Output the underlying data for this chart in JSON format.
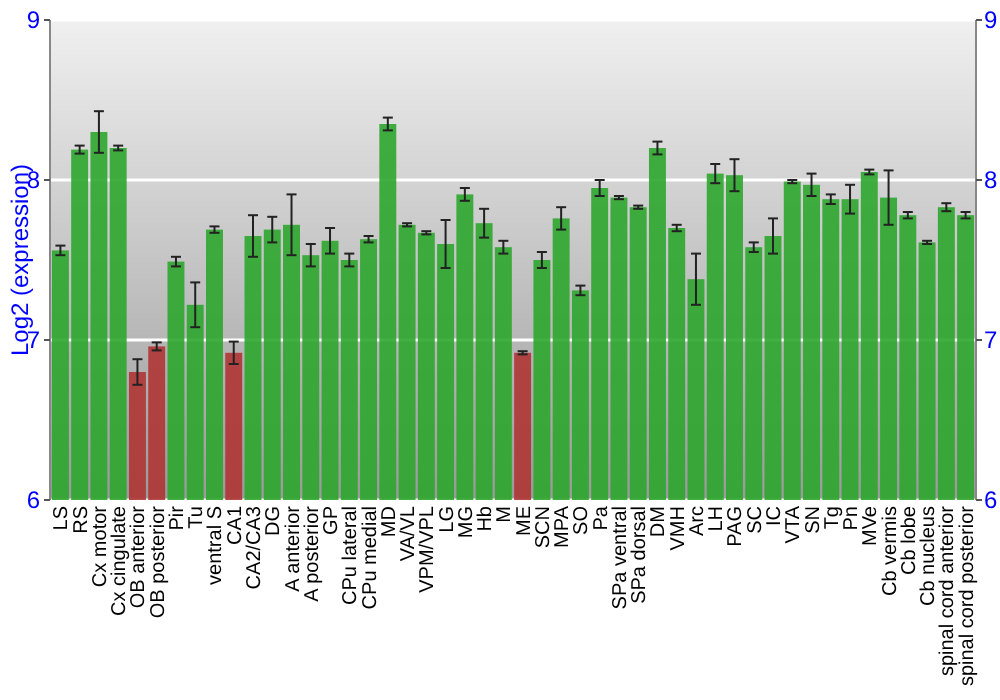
{
  "chart_data": {
    "type": "bar",
    "ylabel": "Log2 (expression)",
    "categories": [
      "LS",
      "RS",
      "Cx motor",
      "Cx cingulate",
      "OB anterior",
      "OB posterior",
      "Pir",
      "Tu",
      "ventral S",
      "CA1",
      "CA2/CA3",
      "DG",
      "A anterior",
      "A posterior",
      "GP",
      "CPu lateral",
      "CPu medial",
      "MD",
      "VA/VL",
      "VPM/VPL",
      "LG",
      "MG",
      "Hb",
      "M",
      "ME",
      "SCN",
      "MPA",
      "SO",
      "Pa",
      "SPa ventral",
      "SPa dorsal",
      "DM",
      "VMH",
      "Arc",
      "LH",
      "PAG",
      "SC",
      "IC",
      "VTA",
      "SN",
      "Tg",
      "Pn",
      "MVe",
      "Cb vermis",
      "Cb lobe",
      "Cb nucleus",
      "spinal cord anterior",
      "spinal cord posterior"
    ],
    "values": [
      7.56,
      8.19,
      8.3,
      8.2,
      6.8,
      6.96,
      7.49,
      7.22,
      7.69,
      6.92,
      7.65,
      7.69,
      7.72,
      7.53,
      7.62,
      7.5,
      7.63,
      8.35,
      7.72,
      7.67,
      7.6,
      7.91,
      7.73,
      7.58,
      6.92,
      7.5,
      7.76,
      7.31,
      7.95,
      7.89,
      7.83,
      8.2,
      7.7,
      7.38,
      8.04,
      8.03,
      7.58,
      7.65,
      7.99,
      7.97,
      7.88,
      7.88,
      8.05,
      7.89,
      7.78,
      7.61,
      7.83,
      7.78
    ],
    "errors": [
      0.03,
      0.025,
      0.13,
      0.015,
      0.08,
      0.025,
      0.03,
      0.14,
      0.02,
      0.07,
      0.13,
      0.08,
      0.19,
      0.07,
      0.08,
      0.04,
      0.02,
      0.04,
      0.01,
      0.01,
      0.15,
      0.04,
      0.09,
      0.04,
      0.01,
      0.05,
      0.07,
      0.03,
      0.05,
      0.01,
      0.01,
      0.04,
      0.02,
      0.16,
      0.06,
      0.1,
      0.03,
      0.11,
      0.01,
      0.07,
      0.03,
      0.09,
      0.015,
      0.17,
      0.02,
      0.01,
      0.025,
      0.02
    ],
    "colors": [
      "#2ea62e",
      "#2ea62e",
      "#2ea62e",
      "#2ea62e",
      "#b03535",
      "#b03535",
      "#2ea62e",
      "#2ea62e",
      "#2ea62e",
      "#b03535",
      "#2ea62e",
      "#2ea62e",
      "#2ea62e",
      "#2ea62e",
      "#2ea62e",
      "#2ea62e",
      "#2ea62e",
      "#2ea62e",
      "#2ea62e",
      "#2ea62e",
      "#2ea62e",
      "#2ea62e",
      "#2ea62e",
      "#2ea62e",
      "#b03535",
      "#2ea62e",
      "#2ea62e",
      "#2ea62e",
      "#2ea62e",
      "#2ea62e",
      "#2ea62e",
      "#2ea62e",
      "#2ea62e",
      "#2ea62e",
      "#2ea62e",
      "#2ea62e",
      "#2ea62e",
      "#2ea62e",
      "#2ea62e",
      "#2ea62e",
      "#2ea62e",
      "#2ea62e",
      "#2ea62e",
      "#2ea62e",
      "#2ea62e",
      "#2ea62e",
      "#2ea62e",
      "#2ea62e"
    ],
    "ylim": [
      6,
      9
    ],
    "yticks": [
      6,
      7,
      8,
      9
    ],
    "y2lim": [
      6,
      9
    ],
    "y2ticks": [
      6,
      7,
      8,
      9
    ],
    "grid": "y"
  }
}
